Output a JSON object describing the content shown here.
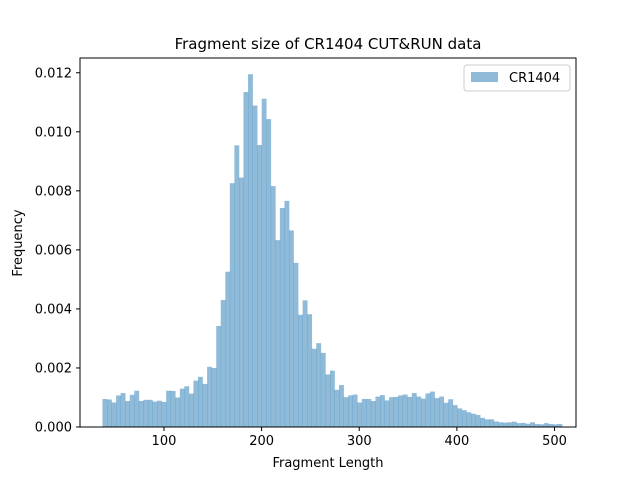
{
  "chart_data": {
    "type": "bar",
    "title": "Fragment size of CR1404 CUT&RUN data",
    "xlabel": "Fragment Length",
    "ylabel": "Frequency",
    "xlim": [
      14,
      522
    ],
    "ylim": [
      0,
      0.0125
    ],
    "xticks": [
      100,
      200,
      300,
      400,
      500
    ],
    "xtick_labels": [
      "100",
      "200",
      "300",
      "400",
      "500"
    ],
    "yticks": [
      0,
      0.002,
      0.004,
      0.006,
      0.008,
      0.01,
      0.012
    ],
    "ytick_labels": [
      "0.000",
      "0.002",
      "0.004",
      "0.006",
      "0.008",
      "0.010",
      "0.012"
    ],
    "grid": false,
    "legend_position": "top-right",
    "bin_start": 37,
    "bin_width": 4.66,
    "series": [
      {
        "name": "CR1404",
        "color": "#1f77b4",
        "opacity": 0.5,
        "values": [
          0.00095,
          0.00093,
          0.00083,
          0.00107,
          0.00115,
          0.00088,
          0.00109,
          0.00123,
          0.00088,
          0.00092,
          0.00092,
          0.00086,
          0.00089,
          0.00085,
          0.00123,
          0.00122,
          0.001,
          0.0013,
          0.00138,
          0.00113,
          0.00157,
          0.0017,
          0.00146,
          0.00204,
          0.002,
          0.00342,
          0.0043,
          0.00526,
          0.00826,
          0.00954,
          0.00845,
          0.01135,
          0.01195,
          0.01089,
          0.00955,
          0.01112,
          0.01043,
          0.00816,
          0.00633,
          0.00742,
          0.00766,
          0.00666,
          0.00556,
          0.0038,
          0.00429,
          0.00382,
          0.00265,
          0.00284,
          0.00251,
          0.00178,
          0.00191,
          0.00126,
          0.00142,
          0.00101,
          0.00107,
          0.0011,
          0.00083,
          0.00095,
          0.00095,
          0.00088,
          0.00103,
          0.00108,
          0.0009,
          0.00101,
          0.00102,
          0.00107,
          0.0011,
          0.00102,
          0.00115,
          0.00103,
          0.00096,
          0.00114,
          0.0012,
          0.00098,
          0.00103,
          0.00082,
          0.00094,
          0.00074,
          0.00063,
          0.00057,
          0.0005,
          0.00045,
          0.00041,
          0.00031,
          0.00026,
          0.00026,
          0.00019,
          0.00016,
          0.00015,
          0.00016,
          0.00018,
          0.00013,
          0.00014,
          0.00011,
          0.00016,
          0.0001,
          9e-05,
          0.00013,
          0.0001,
          9e-05,
          0.0001
        ]
      }
    ]
  }
}
